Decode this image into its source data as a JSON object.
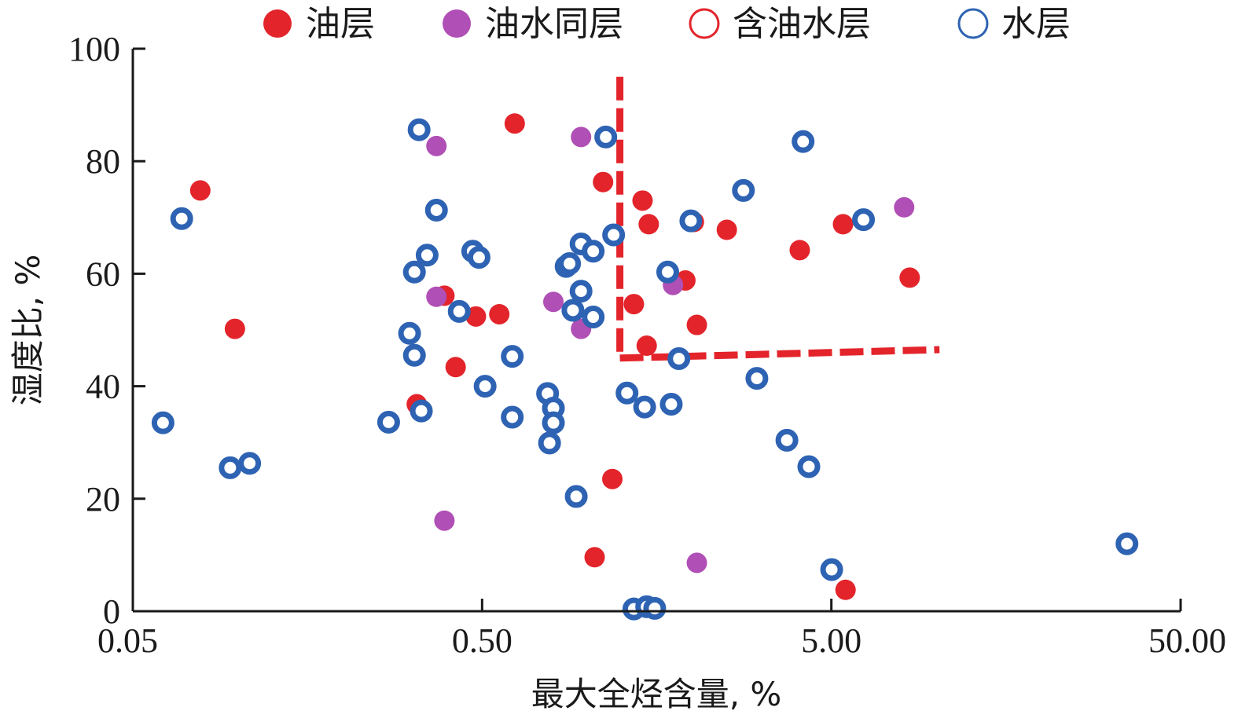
{
  "chart_data": {
    "type": "scatter",
    "title": "",
    "xlabel": "最大全烃含量, %",
    "ylabel": "湿度比, %",
    "xscale": "log",
    "xlim": [
      0.05,
      50
    ],
    "ylim": [
      0,
      100
    ],
    "xticks": [
      0.05,
      0.5,
      5,
      50
    ],
    "xtick_labels": [
      "0.05",
      "0.50",
      "5.00",
      "50.00"
    ],
    "yticks": [
      0,
      20,
      40,
      60,
      80,
      100
    ],
    "ytick_labels": [
      "0",
      "20",
      "40",
      "60",
      "80",
      "100"
    ],
    "grid": false,
    "legend": "top",
    "series": [
      {
        "name": "油层",
        "marker": "filled",
        "color": "#e3242b",
        "points": [
          [
            0.078,
            74.8
          ],
          [
            0.098,
            50.2
          ],
          [
            0.39,
            56.1
          ],
          [
            0.42,
            43.4
          ],
          [
            0.48,
            52.4
          ],
          [
            0.56,
            52.8
          ],
          [
            0.62,
            86.7
          ],
          [
            1.11,
            76.3
          ],
          [
            1.18,
            23.5
          ],
          [
            1.05,
            9.6
          ],
          [
            1.36,
            54.6
          ],
          [
            1.44,
            73.0
          ],
          [
            1.5,
            68.8
          ],
          [
            1.48,
            47.2
          ],
          [
            2.02,
            69.2
          ],
          [
            2.06,
            50.9
          ],
          [
            1.91,
            58.8
          ],
          [
            2.51,
            67.8
          ],
          [
            4.06,
            64.2
          ],
          [
            5.4,
            68.8
          ],
          [
            5.49,
            3.8
          ],
          [
            0.325,
            36.8
          ],
          [
            8.38,
            59.3
          ]
        ]
      },
      {
        "name": "油水同层",
        "marker": "filled",
        "color": "#b04fb5",
        "points": [
          [
            0.37,
            82.7
          ],
          [
            0.37,
            55.9
          ],
          [
            0.39,
            16.1
          ],
          [
            0.8,
            55.0
          ],
          [
            0.96,
            84.3
          ],
          [
            0.96,
            50.2
          ],
          [
            1.76,
            58.0
          ],
          [
            2.06,
            8.6
          ],
          [
            8.08,
            71.8
          ]
        ]
      },
      {
        "name": "含油水层",
        "marker": "hollow",
        "color": "#e3242b",
        "points": []
      },
      {
        "name": "水层",
        "marker": "hollow",
        "color": "#2e63b3",
        "points": [
          [
            0.061,
            33.5
          ],
          [
            0.069,
            69.8
          ],
          [
            0.095,
            25.5
          ],
          [
            0.108,
            26.3
          ],
          [
            0.27,
            33.6
          ],
          [
            0.31,
            49.4
          ],
          [
            0.32,
            45.5
          ],
          [
            0.32,
            60.3
          ],
          [
            0.335,
            35.6
          ],
          [
            0.33,
            85.6
          ],
          [
            0.348,
            63.3
          ],
          [
            0.37,
            71.3
          ],
          [
            0.43,
            53.3
          ],
          [
            0.47,
            64.0
          ],
          [
            0.49,
            62.9
          ],
          [
            0.51,
            40.0
          ],
          [
            0.61,
            45.3
          ],
          [
            0.61,
            34.5
          ],
          [
            0.77,
            38.7
          ],
          [
            0.8,
            36.1
          ],
          [
            0.8,
            33.5
          ],
          [
            0.78,
            29.9
          ],
          [
            0.87,
            61.3
          ],
          [
            0.89,
            61.8
          ],
          [
            0.91,
            53.5
          ],
          [
            0.96,
            65.3
          ],
          [
            0.96,
            56.9
          ],
          [
            1.04,
            64.0
          ],
          [
            1.04,
            52.3
          ],
          [
            1.13,
            84.3
          ],
          [
            1.19,
            66.9
          ],
          [
            0.93,
            20.4
          ],
          [
            1.3,
            38.8
          ],
          [
            1.46,
            36.3
          ],
          [
            1.36,
            0.4
          ],
          [
            1.48,
            0.8
          ],
          [
            1.56,
            0.5
          ],
          [
            1.7,
            60.3
          ],
          [
            1.74,
            36.8
          ],
          [
            1.83,
            44.9
          ],
          [
            1.98,
            69.4
          ],
          [
            2.8,
            74.8
          ],
          [
            3.06,
            41.4
          ],
          [
            3.73,
            30.4
          ],
          [
            4.15,
            83.5
          ],
          [
            4.31,
            25.7
          ],
          [
            5.01,
            7.4
          ],
          [
            6.18,
            69.6
          ],
          [
            35.1,
            12.0
          ]
        ]
      }
    ],
    "annotations": [
      {
        "type": "dashed-line",
        "color": "#e3242b",
        "points": [
          [
            1.24,
            95
          ],
          [
            1.24,
            45
          ]
        ]
      },
      {
        "type": "dashed-line",
        "color": "#e3242b",
        "points": [
          [
            1.24,
            45
          ],
          [
            10.2,
            46.5
          ]
        ]
      }
    ]
  }
}
